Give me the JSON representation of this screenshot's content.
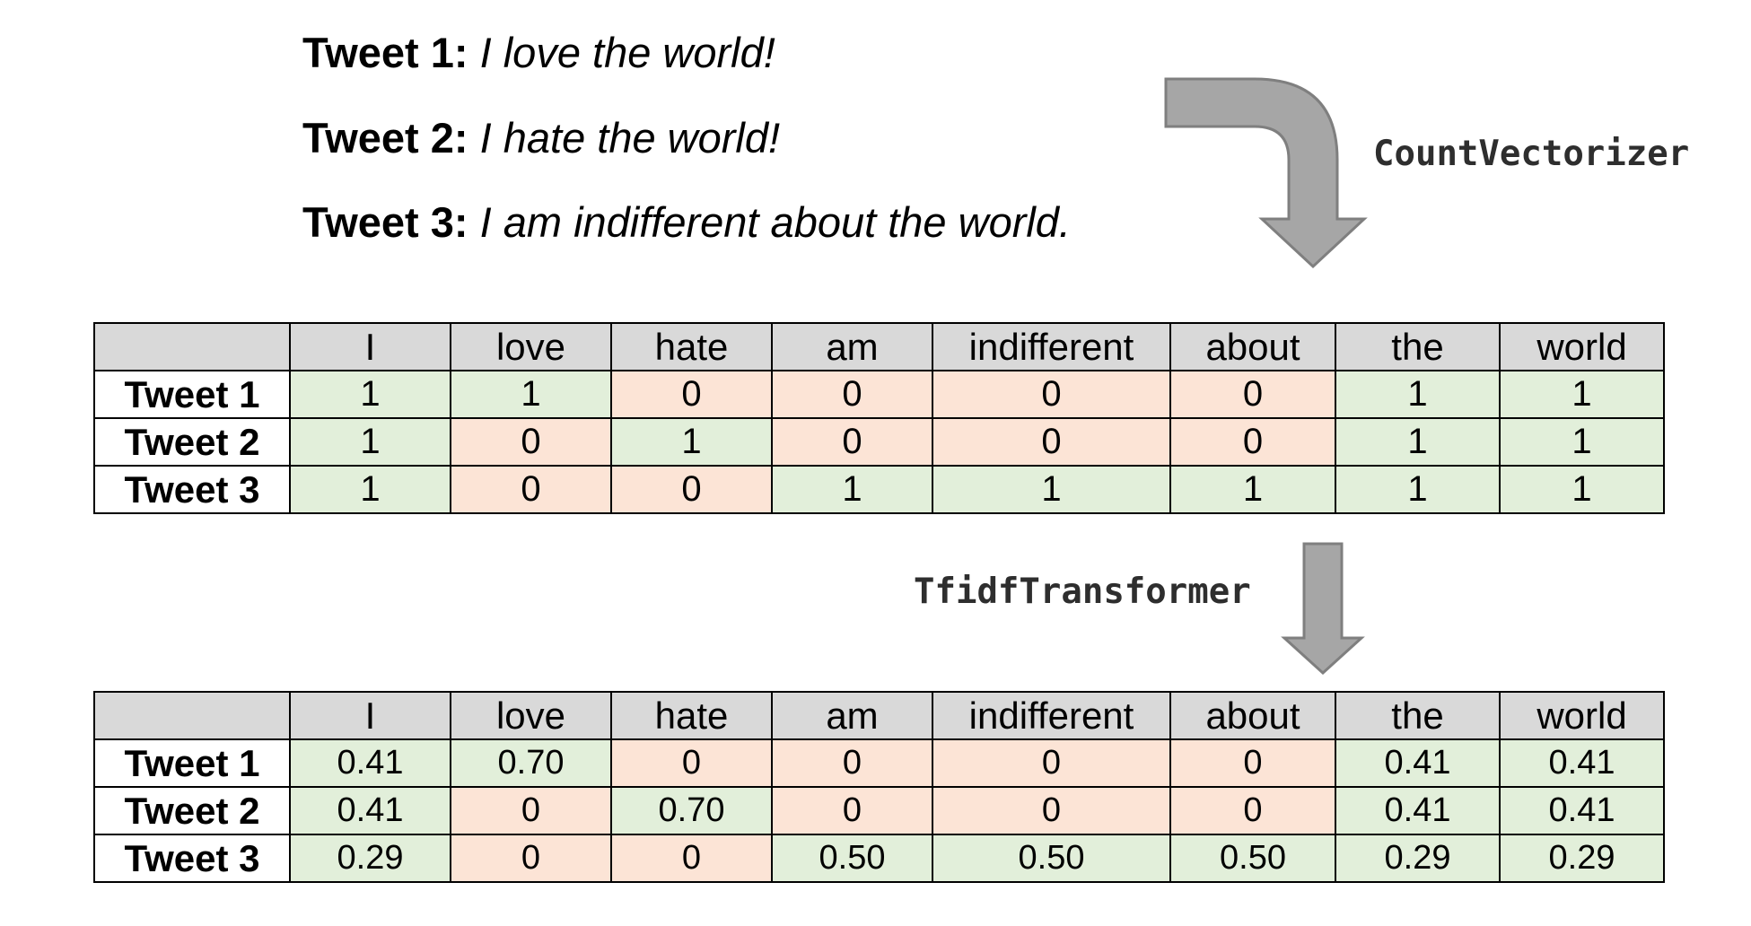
{
  "tweets": [
    {
      "label": "Tweet 1:",
      "text": "I love the world!"
    },
    {
      "label": "Tweet 2:",
      "text": "I hate the world!"
    },
    {
      "label": "Tweet 3:",
      "text": "I am indifferent about the world."
    }
  ],
  "steps": {
    "count_vectorizer": "CountVectorizer",
    "tfidf_transformer": "TfidfTransformer"
  },
  "colors": {
    "header_fill": "#d9d9d9",
    "positive_fill": "#e2efda",
    "zero_fill": "#fce4d6",
    "arrow_fill": "#a6a6a6",
    "arrow_stroke": "#7f7f7f"
  },
  "columns": [
    "I",
    "love",
    "hate",
    "am",
    "indifferent",
    "about",
    "the",
    "world"
  ],
  "count_matrix": {
    "rows": [
      {
        "label": "Tweet 1",
        "values": [
          "1",
          "1",
          "0",
          "0",
          "0",
          "0",
          "1",
          "1"
        ]
      },
      {
        "label": "Tweet 2",
        "values": [
          "1",
          "0",
          "1",
          "0",
          "0",
          "0",
          "1",
          "1"
        ]
      },
      {
        "label": "Tweet 3",
        "values": [
          "1",
          "0",
          "0",
          "1",
          "1",
          "1",
          "1",
          "1"
        ]
      }
    ]
  },
  "tfidf_matrix": {
    "rows": [
      {
        "label": "Tweet 1",
        "values": [
          "0.41",
          "0.70",
          "0",
          "0",
          "0",
          "0",
          "0.41",
          "0.41"
        ]
      },
      {
        "label": "Tweet 2",
        "values": [
          "0.41",
          "0",
          "0.70",
          "0",
          "0",
          "0",
          "0.41",
          "0.41"
        ]
      },
      {
        "label": "Tweet 3",
        "values": [
          "0.29",
          "0",
          "0",
          "0.50",
          "0.50",
          "0.50",
          "0.29",
          "0.29"
        ]
      }
    ]
  }
}
